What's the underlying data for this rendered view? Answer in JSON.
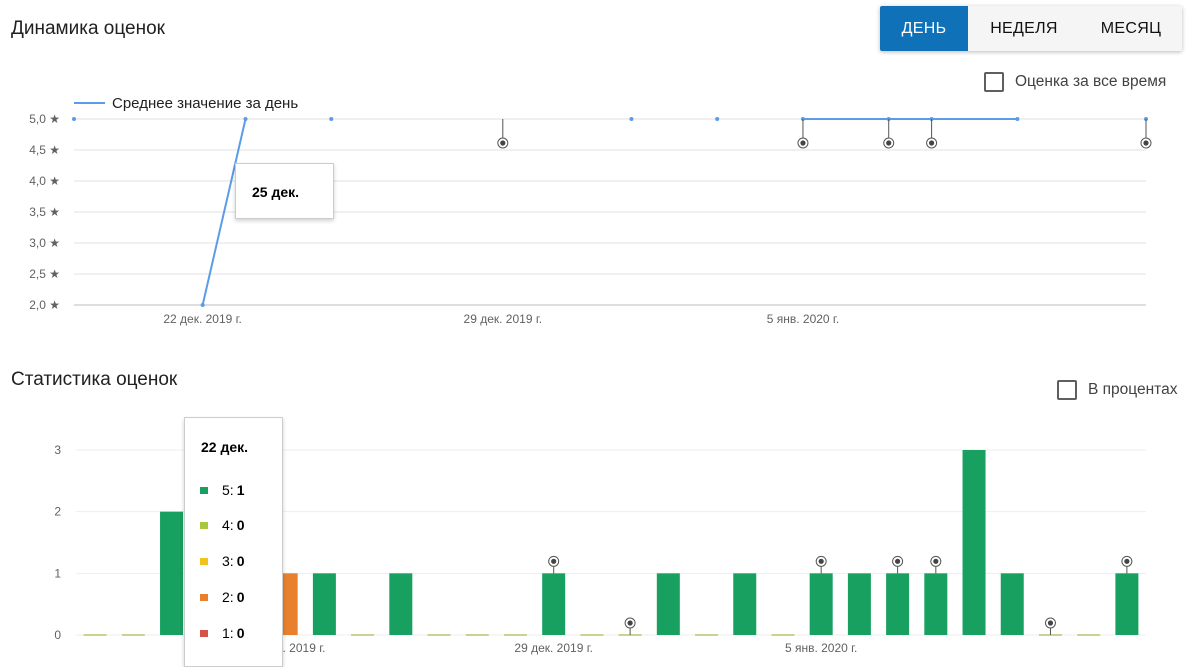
{
  "header": {
    "title": "Динамика оценок"
  },
  "period_buttons": [
    {
      "label": "ДЕНЬ",
      "active": true
    },
    {
      "label": "НЕДЕЛЯ",
      "active": false
    },
    {
      "label": "МЕСЯЦ",
      "active": false
    }
  ],
  "alltime_checkbox": {
    "label": "Оценка за все время",
    "checked": false
  },
  "stats": {
    "title": "Статистика оценок",
    "percent_checkbox": {
      "label": "В процентах",
      "checked": false
    }
  },
  "colors": {
    "line": "#5b9be8",
    "star5": "#18a060",
    "star4": "#a8c840",
    "star3": "#f2c31a",
    "star2": "#e8802d",
    "star1": "#d4524a",
    "active_button": "#0f72b8",
    "marker": "#555555"
  },
  "tooltip_line": {
    "title": "25 дек."
  },
  "tooltip_bars": {
    "title": "22 дек.",
    "rows": [
      {
        "key": "5:",
        "value": "1",
        "color": "#18a060"
      },
      {
        "key": "4:",
        "value": "0",
        "color": "#a8c840"
      },
      {
        "key": "3:",
        "value": "0",
        "color": "#f2c31a"
      },
      {
        "key": "2:",
        "value": "0",
        "color": "#e8802d"
      },
      {
        "key": "1:",
        "value": "0",
        "color": "#d4524a"
      }
    ]
  },
  "chart_data": [
    {
      "type": "line",
      "title": "Динамика оценок",
      "ylim": [
        2.0,
        5.0
      ],
      "y_ticks": [
        "5,0 ★",
        "4,5 ★",
        "4,0 ★",
        "3,5 ★",
        "3,0 ★",
        "2,5 ★",
        "2,0 ★"
      ],
      "x_ticks": [
        {
          "x": 3,
          "label": "22 дек. 2019 г."
        },
        {
          "x": 10,
          "label": "29 дек. 2019 г."
        },
        {
          "x": 17,
          "label": "5 янв. 2020 г."
        }
      ],
      "x_range": [
        0,
        25
      ],
      "series": [
        {
          "name": "Среднее значение за день",
          "points": [
            [
              0,
              5.0
            ],
            [
              3,
              2.0
            ],
            [
              4,
              5.0
            ],
            [
              6,
              5.0
            ],
            [
              13,
              5.0
            ],
            [
              15,
              5.0
            ],
            [
              17,
              5.0
            ],
            [
              19,
              5.0
            ],
            [
              20,
              5.0
            ],
            [
              22,
              5.0
            ],
            [
              25,
              5.0
            ]
          ],
          "gaps_after_x": [
            0,
            4,
            6,
            13,
            15,
            22
          ]
        }
      ],
      "annotations_x": [
        10,
        17,
        19,
        20,
        25
      ],
      "grid": true,
      "legend": "top-left"
    },
    {
      "type": "bar",
      "title": "Статистика оценок",
      "ylim": [
        0,
        3
      ],
      "y_ticks": [
        "0",
        "1",
        "2",
        "3"
      ],
      "x_ticks": [
        {
          "index": 5.5,
          "label": "22 дек. 2019 г."
        },
        {
          "index": 12.5,
          "label": "29 дек. 2019 г."
        },
        {
          "index": 19.5,
          "label": "5 янв. 2020 г."
        }
      ],
      "category_count": 28,
      "series": [
        {
          "name": "5",
          "values": [
            0,
            0,
            2,
            0,
            0,
            0,
            1,
            0,
            1,
            0,
            0,
            0,
            1,
            0,
            0,
            1,
            0,
            1,
            0,
            1,
            1,
            1,
            1,
            3,
            1,
            0,
            0,
            1
          ]
        },
        {
          "name": "2",
          "values": [
            0,
            0,
            0,
            0,
            0,
            1,
            0,
            0,
            0,
            0,
            0,
            0,
            0,
            0,
            0,
            0,
            0,
            0,
            0,
            0,
            0,
            0,
            0,
            0,
            0,
            0,
            0,
            0
          ]
        }
      ],
      "annotations_index": [
        12,
        14,
        19,
        21,
        22,
        25,
        27
      ],
      "grid": true
    }
  ]
}
